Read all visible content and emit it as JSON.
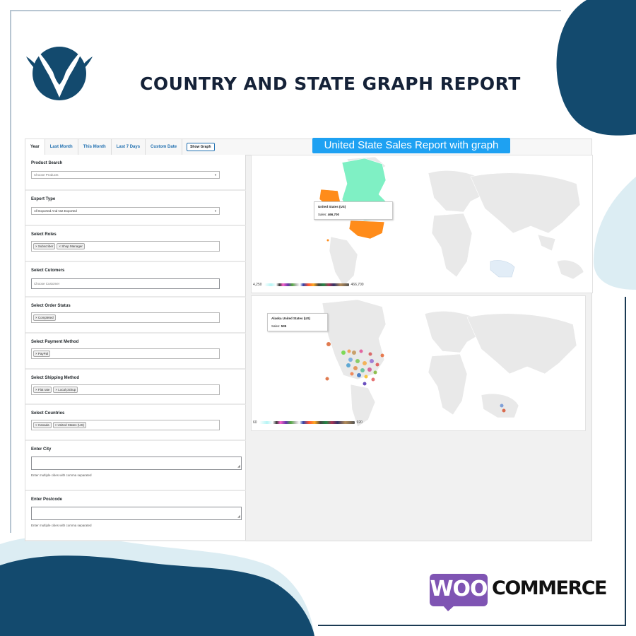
{
  "page": {
    "title": "COUNTRY AND STATE GRAPH REPORT"
  },
  "colors": {
    "brand_blue": "#134a6e",
    "accent_blue": "#1ea1f2",
    "woo_purple": "#7f54b3"
  },
  "tabs": [
    {
      "label": "Year",
      "active": true
    },
    {
      "label": "Last Month",
      "active": false
    },
    {
      "label": "This Month",
      "active": false
    },
    {
      "label": "Last 7 Days",
      "active": false
    },
    {
      "label": "Custom Date",
      "active": false
    }
  ],
  "show_graph_label": "Show Graph",
  "report_banner": "United State Sales Report with graph",
  "form": {
    "product_search": {
      "label": "Product Search",
      "placeholder": "Choose Products"
    },
    "export_type": {
      "label": "Export Type",
      "value": "All Exported And Not Exported"
    },
    "roles": {
      "label": "Select Roles",
      "chips": [
        "Subscriber",
        "Shop Manager"
      ]
    },
    "customers": {
      "label": "Select Cutomers",
      "placeholder": "Choose Customer"
    },
    "order_status": {
      "label": "Select Order Status",
      "chips": [
        "Completed"
      ]
    },
    "payment_method": {
      "label": "Select Payment Method",
      "chips": [
        "PayPal"
      ]
    },
    "shipping_method": {
      "label": "Select Shipping Method",
      "chips": [
        "Flat rate",
        "Local pickup"
      ]
    },
    "countries": {
      "label": "Select Countries",
      "chips": [
        "Canada",
        "United States (US)"
      ]
    },
    "city": {
      "label": "Enter City",
      "hint": "Enter multiple cities with comma separated"
    },
    "postcode": {
      "label": "Enter Postcode",
      "hint": "Enter multiple cities with comma separated"
    }
  },
  "country_map": {
    "tooltip_title": "United States (US)",
    "tooltip_label": "Sales:",
    "tooltip_value": "466,700",
    "scale_min": "4,250",
    "scale_max": "466,700"
  },
  "state_map": {
    "tooltip_title": "Alaska United States (US)",
    "tooltip_label": "Sales:",
    "tooltip_value": "535",
    "scale_min": "60",
    "scale_max": "920"
  },
  "brand": {
    "woo": "WOO",
    "commerce": "COMMERCE"
  }
}
